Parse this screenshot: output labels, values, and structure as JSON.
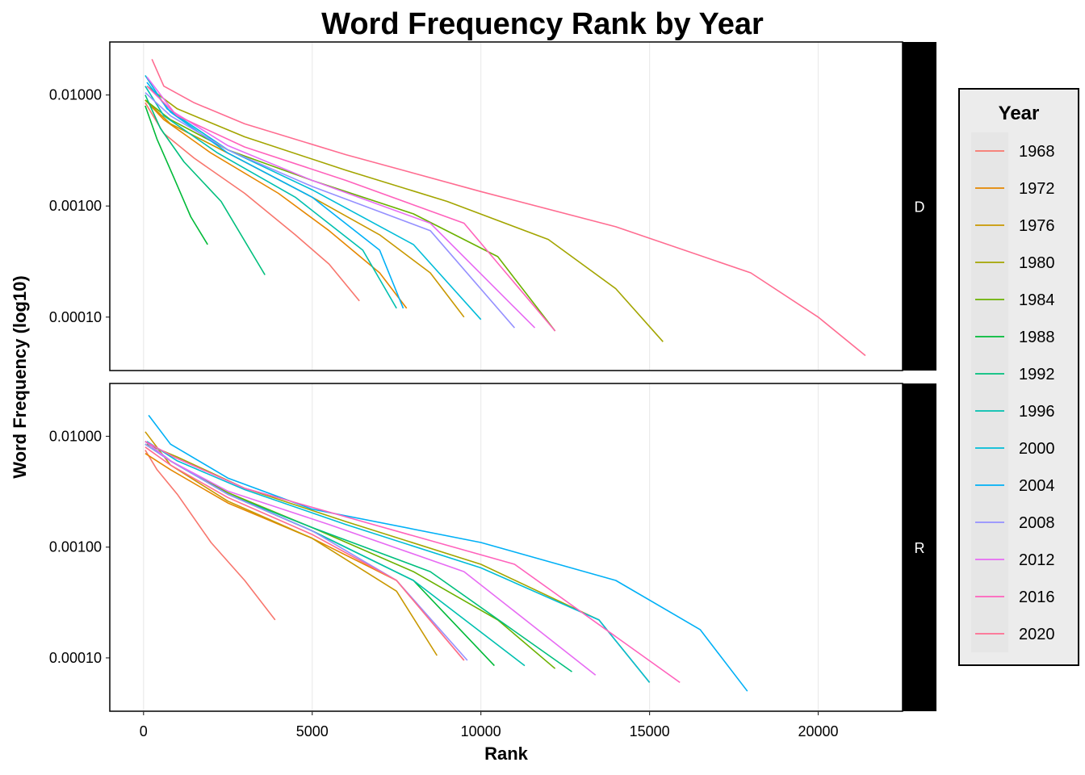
{
  "chart_data": {
    "type": "line",
    "title": "Word Frequency Rank by Year",
    "xlabel": "Rank",
    "ylabel": "Word Frequency (log10)",
    "y_scale": "log10",
    "xlim": [
      -1000,
      22500
    ],
    "ylim": [
      3.3e-05,
      0.03
    ],
    "x_ticks": [
      0,
      5000,
      10000,
      15000,
      20000
    ],
    "x_tick_labels": [
      "0",
      "5000",
      "10000",
      "15000",
      "20000"
    ],
    "y_ticks": [
      0.01,
      0.001,
      0.0001
    ],
    "y_tick_labels": [
      "0.01000",
      "0.00100",
      "0.00010"
    ],
    "grid": true,
    "legend": {
      "title": "Year",
      "placement": "right",
      "entries": [
        {
          "label": "1968",
          "color": "#F8766D"
        },
        {
          "label": "1972",
          "color": "#E58700"
        },
        {
          "label": "1976",
          "color": "#C99800"
        },
        {
          "label": "1980",
          "color": "#A3A500"
        },
        {
          "label": "1984",
          "color": "#6BB100"
        },
        {
          "label": "1988",
          "color": "#00BA38"
        },
        {
          "label": "1992",
          "color": "#00BF7D"
        },
        {
          "label": "1996",
          "color": "#00C0AF"
        },
        {
          "label": "2000",
          "color": "#00BCD8"
        },
        {
          "label": "2004",
          "color": "#00B0F6"
        },
        {
          "label": "2008",
          "color": "#9590FF"
        },
        {
          "label": "2012",
          "color": "#E76BF3"
        },
        {
          "label": "2016",
          "color": "#FF62BC"
        },
        {
          "label": "2020",
          "color": "#FF6C91"
        }
      ]
    },
    "facets": [
      {
        "label": "D",
        "series": [
          {
            "name": "1968",
            "x": [
              50,
              600,
              1500,
              3000,
              4500,
              5500,
              6400
            ],
            "y": [
              0.0085,
              0.0045,
              0.0027,
              0.0013,
              0.00055,
              0.0003,
              0.00014
            ]
          },
          {
            "name": "1972",
            "x": [
              50,
              600,
              2000,
              4000,
              5500,
              7000,
              7800
            ],
            "y": [
              0.009,
              0.006,
              0.003,
              0.0013,
              0.0006,
              0.00025,
              0.00012
            ]
          },
          {
            "name": "1976",
            "x": [
              50,
              800,
              2500,
              5000,
              7000,
              8500,
              9500
            ],
            "y": [
              0.009,
              0.0055,
              0.003,
              0.0012,
              0.00055,
              0.00025,
              0.0001
            ]
          },
          {
            "name": "1980",
            "x": [
              100,
              1000,
              3000,
              6000,
              9000,
              12000,
              14000,
              15400
            ],
            "y": [
              0.012,
              0.0075,
              0.0042,
              0.0021,
              0.0011,
              0.0005,
              0.00018,
              6e-05
            ]
          },
          {
            "name": "1984",
            "x": [
              50,
              800,
              2500,
              5000,
              8000,
              10500,
              12200
            ],
            "y": [
              0.009,
              0.006,
              0.0032,
              0.0017,
              0.00085,
              0.00035,
              7.5e-05
            ]
          },
          {
            "name": "1988",
            "x": [
              50,
              400,
              900,
              1400,
              1900
            ],
            "y": [
              0.008,
              0.004,
              0.0018,
              0.0008,
              0.00045
            ]
          },
          {
            "name": "1992",
            "x": [
              50,
              500,
              1200,
              2300,
              3600
            ],
            "y": [
              0.01,
              0.005,
              0.0025,
              0.0011,
              0.00024
            ]
          },
          {
            "name": "1996",
            "x": [
              50,
              600,
              2200,
              4500,
              6500,
              7500
            ],
            "y": [
              0.012,
              0.0065,
              0.003,
              0.0012,
              0.0004,
              0.00012
            ]
          },
          {
            "name": "2000",
            "x": [
              50,
              700,
              2500,
              5000,
              8000,
              10000
            ],
            "y": [
              0.015,
              0.0075,
              0.0032,
              0.0014,
              0.00045,
              9.5e-05
            ]
          },
          {
            "name": "2004",
            "x": [
              100,
              800,
              2500,
              5000,
              7000,
              7700
            ],
            "y": [
              0.013,
              0.007,
              0.003,
              0.0012,
              0.0004,
              0.00012
            ]
          },
          {
            "name": "2008",
            "x": [
              50,
              800,
              2500,
              5000,
              8500,
              11000
            ],
            "y": [
              0.0105,
              0.0065,
              0.0032,
              0.0015,
              0.0006,
              8e-05
            ]
          },
          {
            "name": "2012",
            "x": [
              100,
              900,
              2500,
              5000,
              8500,
              11600
            ],
            "y": [
              0.0145,
              0.007,
              0.0035,
              0.0017,
              0.0007,
              8e-05
            ]
          },
          {
            "name": "2016",
            "x": [
              100,
              1000,
              3000,
              6000,
              9500,
              12200
            ],
            "y": [
              0.012,
              0.0065,
              0.0034,
              0.0017,
              0.0007,
              7.5e-05
            ]
          },
          {
            "name": "2020",
            "x": [
              250,
              600,
              1500,
              3000,
              6000,
              10000,
              14000,
              18000,
              20000,
              21400
            ],
            "y": [
              0.021,
              0.012,
              0.0085,
              0.0055,
              0.0029,
              0.00135,
              0.00065,
              0.00025,
              0.0001,
              4.5e-05
            ]
          }
        ]
      },
      {
        "label": "R",
        "series": [
          {
            "name": "1968",
            "x": [
              50,
              400,
              1000,
              2000,
              3000,
              3900
            ],
            "y": [
              0.0075,
              0.005,
              0.003,
              0.0011,
              0.0005,
              0.00022
            ]
          },
          {
            "name": "1972",
            "x": [
              50,
              800,
              2500,
              5000,
              7500,
              9500
            ],
            "y": [
              0.007,
              0.005,
              0.0025,
              0.0012,
              0.0005,
              9.5e-05
            ]
          },
          {
            "name": "1976",
            "x": [
              50,
              800,
              2500,
              5000,
              7500,
              8700
            ],
            "y": [
              0.011,
              0.0055,
              0.0026,
              0.0012,
              0.0004,
              0.000105
            ]
          },
          {
            "name": "1980",
            "x": [
              100,
              1000,
              3000,
              6000,
              10000,
              13500,
              15000
            ],
            "y": [
              0.0085,
              0.0065,
              0.0034,
              0.0017,
              0.0007,
              0.00022,
              6e-05
            ]
          },
          {
            "name": "1984",
            "x": [
              50,
              800,
              2500,
              5000,
              8000,
              10500,
              12200
            ],
            "y": [
              0.0085,
              0.006,
              0.0031,
              0.0015,
              0.0006,
              0.00022,
              8e-05
            ]
          },
          {
            "name": "1988",
            "x": [
              50,
              800,
              2500,
              5000,
              8000,
              10400
            ],
            "y": [
              0.009,
              0.006,
              0.003,
              0.0014,
              0.0005,
              8.5e-05
            ]
          },
          {
            "name": "1992",
            "x": [
              50,
              800,
              2500,
              5000,
              8500,
              12700
            ],
            "y": [
              0.009,
              0.006,
              0.003,
              0.0015,
              0.0006,
              7.5e-05
            ]
          },
          {
            "name": "1996",
            "x": [
              50,
              800,
              2500,
              5000,
              8000,
              11300
            ],
            "y": [
              0.0085,
              0.006,
              0.003,
              0.0014,
              0.0005,
              8.5e-05
            ]
          },
          {
            "name": "2000",
            "x": [
              100,
              1000,
              3000,
              6000,
              10000,
              13500,
              15000
            ],
            "y": [
              0.009,
              0.006,
              0.0033,
              0.0016,
              0.00065,
              0.00022,
              6e-05
            ]
          },
          {
            "name": "2004",
            "x": [
              150,
              800,
              2500,
              5000,
              10000,
              14000,
              16500,
              17900
            ],
            "y": [
              0.0155,
              0.0085,
              0.0042,
              0.0022,
              0.0011,
              0.0005,
              0.00018,
              5e-05
            ]
          },
          {
            "name": "2008",
            "x": [
              50,
              800,
              2500,
              5000,
              7500,
              9600
            ],
            "y": [
              0.0085,
              0.006,
              0.003,
              0.0014,
              0.0005,
              9.5e-05
            ]
          },
          {
            "name": "2012",
            "x": [
              50,
              800,
              2500,
              5500,
              9500,
              13400
            ],
            "y": [
              0.009,
              0.006,
              0.0032,
              0.0016,
              0.0006,
              7e-05
            ]
          },
          {
            "name": "2016",
            "x": [
              50,
              900,
              3000,
              6500,
              11000,
              15900
            ],
            "y": [
              0.009,
              0.0065,
              0.0034,
              0.0017,
              0.0007,
              6e-05
            ]
          },
          {
            "name": "2020",
            "x": [
              50,
              800,
              2500,
              5000,
              7500,
              9500
            ],
            "y": [
              0.008,
              0.0055,
              0.0028,
              0.0013,
              0.0005,
              9.5e-05
            ]
          }
        ]
      }
    ]
  }
}
